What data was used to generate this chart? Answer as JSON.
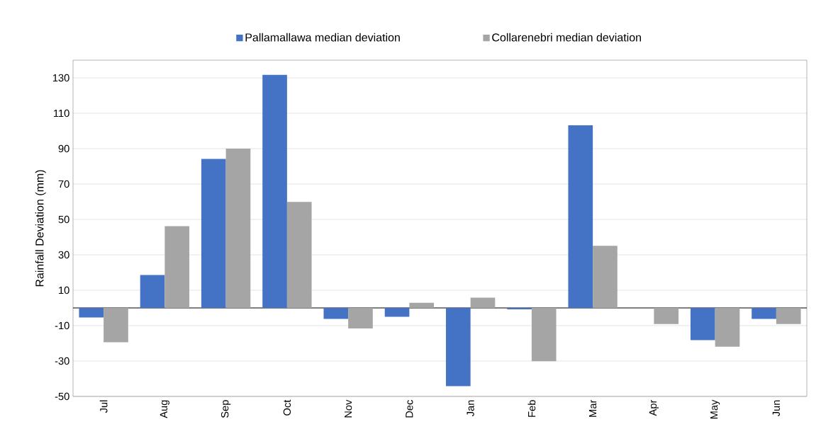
{
  "chart_data": {
    "type": "bar",
    "ylabel": "Rainfall Deviation (mm)",
    "categories": [
      "Jul",
      "Aug",
      "Sep",
      "Oct",
      "Nov",
      "Dec",
      "Jan",
      "Feb",
      "Mar",
      "Apr",
      "May",
      "Jun"
    ],
    "series": [
      {
        "name": "Pallamallawa median deviation",
        "color": "#4472c4",
        "values": [
          -5.4,
          18.6,
          84.2,
          131.7,
          -6.2,
          -5,
          -44.2,
          -0.8,
          103.2,
          0,
          -18.2,
          -6.2
        ]
      },
      {
        "name": "Collarenebri median deviation",
        "color": "#a5a5a5",
        "values": [
          -19.4,
          46.2,
          90,
          59.9,
          -11.6,
          2.9,
          5.8,
          -30.1,
          35.1,
          -9.1,
          -21.9,
          -9.1
        ]
      }
    ],
    "ylim": [
      -50,
      140
    ],
    "yticks": [
      -50,
      -30,
      -10,
      10,
      30,
      50,
      70,
      90,
      110,
      130
    ],
    "grid": "y",
    "legend": "top"
  }
}
